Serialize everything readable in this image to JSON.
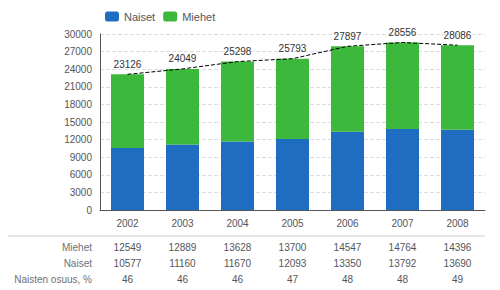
{
  "chart_data": {
    "type": "bar",
    "stacked": true,
    "categories": [
      "2002",
      "2003",
      "2004",
      "2005",
      "2006",
      "2007",
      "2008"
    ],
    "series": [
      {
        "name": "Naiset",
        "color": "#1e6dc0",
        "values": [
          10577,
          11160,
          11670,
          12093,
          13350,
          13792,
          13690
        ]
      },
      {
        "name": "Miehet",
        "color": "#3cb83c",
        "values": [
          12549,
          12889,
          13628,
          13700,
          14547,
          14764,
          14396
        ]
      }
    ],
    "totals": {
      "type": "line",
      "line_style": "dashed",
      "color": "#000000",
      "data_labels": true,
      "values": [
        23126,
        24049,
        25298,
        25793,
        27897,
        28556,
        28086
      ]
    },
    "ylim": [
      0,
      30000
    ],
    "yticks": [
      0,
      3000,
      6000,
      9000,
      12000,
      15000,
      18000,
      21000,
      24000,
      27000,
      30000
    ],
    "grid": true,
    "legend": "upper left",
    "table": {
      "rows": [
        {
          "label": "Miehet",
          "values": [
            12549,
            12889,
            13628,
            13700,
            14547,
            14764,
            14396
          ]
        },
        {
          "label": "Naiset",
          "values": [
            10577,
            11160,
            11670,
            12093,
            13350,
            13792,
            13690
          ]
        },
        {
          "label": "Naisten osuus, %",
          "values": [
            46,
            46,
            46,
            47,
            48,
            48,
            49
          ]
        }
      ]
    }
  }
}
